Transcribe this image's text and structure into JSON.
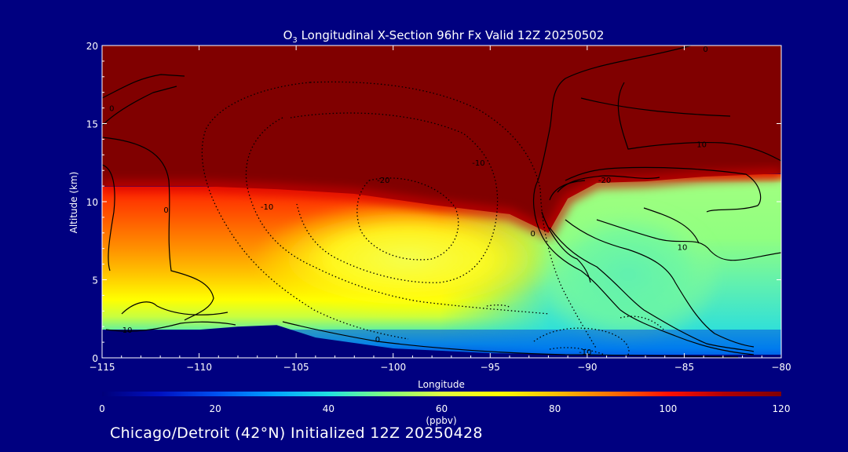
{
  "chart_data": {
    "type": "heatmap",
    "title_prefix": "O",
    "title_subscript": "3",
    "title_rest": " Longitudinal X-Section 96hr  Fx Valid 12Z 20250502",
    "xlabel": "Longitude",
    "ylabel": "Altitude (km)",
    "xlim": [
      -115,
      -80
    ],
    "ylim": [
      0,
      20
    ],
    "x_ticks": [
      -115,
      -110,
      -105,
      -100,
      -95,
      -90,
      -85,
      -80
    ],
    "x_tick_labels": [
      "−115",
      "−110",
      "−105",
      "−100",
      "−95",
      "−90",
      "−85",
      "−80"
    ],
    "y_ticks": [
      0,
      5,
      10,
      15,
      20
    ],
    "y_tick_labels": [
      "0",
      "5",
      "10",
      "15",
      "20"
    ],
    "colorbar": {
      "min": 0,
      "max": 120,
      "ticks": [
        0,
        20,
        40,
        60,
        80,
        100,
        120
      ],
      "tick_labels": [
        "0",
        "20",
        "40",
        "60",
        "80",
        "100",
        "120"
      ],
      "units": "(ppbv)",
      "colors": [
        "#00007a",
        "#0010c0",
        "#0050f0",
        "#00a0ff",
        "#20e0e0",
        "#80ff80",
        "#e0ff40",
        "#ffff00",
        "#ffc000",
        "#ff7000",
        "#ff1000",
        "#b00000",
        "#800000"
      ]
    },
    "terrain_km": [
      [
        -115,
        1.8
      ],
      [
        -110,
        1.8
      ],
      [
        -108,
        2.0
      ],
      [
        -106,
        2.1
      ],
      [
        -104,
        1.3
      ],
      [
        -100,
        0.6
      ],
      [
        -95,
        0.3
      ],
      [
        -90,
        0.2
      ],
      [
        -85,
        0.2
      ],
      [
        -80,
        0.2
      ]
    ],
    "tropopause_km": [
      [
        -115,
        11.0
      ],
      [
        -110,
        11.0
      ],
      [
        -106,
        10.8
      ],
      [
        -102,
        10.5
      ],
      [
        -98,
        9.8
      ],
      [
        -94,
        9.2
      ],
      [
        -92,
        8.0
      ],
      [
        -91,
        10.2
      ],
      [
        -89.5,
        11.2
      ],
      [
        -87,
        11.3
      ],
      [
        -84,
        11.6
      ],
      [
        -80,
        11.8
      ]
    ],
    "contour_labels": [
      {
        "text": "0",
        "x": -114.5,
        "y": 15.8
      },
      {
        "text": "0",
        "x": -111.7,
        "y": 9.3
      },
      {
        "text": "10",
        "x": -113.7,
        "y": 1.6
      },
      {
        "text": "-10",
        "x": -106.5,
        "y": 9.5
      },
      {
        "text": "-20",
        "x": -100.5,
        "y": 11.2
      },
      {
        "text": "-10",
        "x": -95.6,
        "y": 12.3
      },
      {
        "text": "0",
        "x": -92.8,
        "y": 7.8
      },
      {
        "text": "-20",
        "x": -89.1,
        "y": 11.2
      },
      {
        "text": "10",
        "x": -85.1,
        "y": 6.9
      },
      {
        "text": "10",
        "x": -84.1,
        "y": 13.5
      },
      {
        "text": "0",
        "x": -83.9,
        "y": 19.6
      },
      {
        "text": "0",
        "x": -100.8,
        "y": 1.0
      },
      {
        "text": "-10",
        "x": -90.1,
        "y": 0.2
      }
    ]
  },
  "footer": {
    "caption": "Chicago/Detroit (42°N) Initialized 12Z 20250428"
  }
}
